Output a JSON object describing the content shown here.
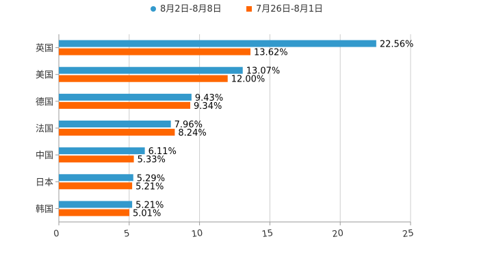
{
  "chart_data": {
    "type": "bar",
    "orientation": "horizontal",
    "categories": [
      "英国",
      "美国",
      "德国",
      "法国",
      "中国",
      "日本",
      "韩国"
    ],
    "series": [
      {
        "name": "8月2日-8月8日",
        "color": "#3399cc",
        "values": [
          22.56,
          13.07,
          9.43,
          7.96,
          6.11,
          5.29,
          5.21
        ],
        "labels": [
          "22.56%",
          "13.07%",
          "9.43%",
          "7.96%",
          "6.11%",
          "5.29%",
          "5.21%"
        ]
      },
      {
        "name": "7月26日-8月1日",
        "color": "#ff6600",
        "values": [
          13.62,
          12.0,
          9.34,
          8.24,
          5.33,
          5.21,
          5.01
        ],
        "labels": [
          "13.62%",
          "12.00%",
          "9.34%",
          "8.24%",
          "5.33%",
          "5.21%",
          "5.01%"
        ]
      }
    ],
    "xlim": [
      0,
      25
    ],
    "xticks": [
      0,
      5,
      10,
      15,
      20,
      25
    ],
    "xtick_labels": [
      "0",
      "5",
      "10",
      "15",
      "20",
      "25"
    ],
    "grid": true,
    "legend": "top-center"
  }
}
